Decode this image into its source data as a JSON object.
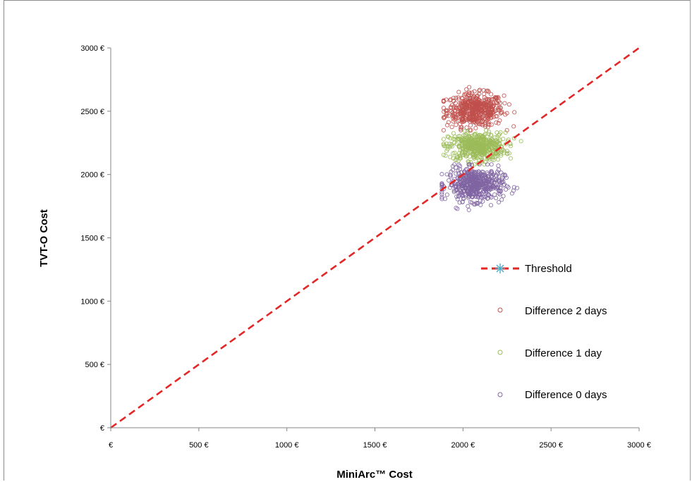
{
  "chart_data": {
    "type": "scatter",
    "title": "",
    "xlabel": "MiniArc™ Cost",
    "ylabel": "TVT-O Cost",
    "xlim": [
      0,
      3000
    ],
    "ylim": [
      0,
      3000
    ],
    "x_ticks": [
      0,
      500,
      1000,
      1500,
      2000,
      2500,
      3000
    ],
    "y_ticks": [
      0,
      500,
      1000,
      1500,
      2000,
      2500,
      3000
    ],
    "x_tick_labels": [
      "€",
      "500 €",
      "1000 €",
      "1500 €",
      "2000 €",
      "2500 €",
      "3000 €"
    ],
    "y_tick_labels": [
      "€",
      "500 €",
      "1000 €",
      "1500 €",
      "2000 €",
      "2500 €",
      "3000 €"
    ],
    "grid": false,
    "legend_position": "right-inside",
    "threshold": {
      "name": "Threshold",
      "x": [
        0,
        3000
      ],
      "y": [
        0,
        3000
      ],
      "color": "#e32626",
      "style": "dashed"
    },
    "series": [
      {
        "name": "Difference 2 days",
        "color": "#c0504d",
        "x_range": [
          1890,
          2300
        ],
        "y_range": [
          2350,
          2690
        ],
        "x_center": 2070,
        "y_center": 2510,
        "x_spread": 80,
        "y_spread": 65,
        "n_points": 500
      },
      {
        "name": "Difference 1 day",
        "color": "#9bbb59",
        "x_range": [
          1890,
          2330
        ],
        "y_range": [
          2080,
          2380
        ],
        "x_center": 2080,
        "y_center": 2220,
        "x_spread": 80,
        "y_spread": 55,
        "n_points": 500
      },
      {
        "name": "Difference 0 days",
        "color": "#8064a2",
        "x_range": [
          1880,
          2320
        ],
        "y_range": [
          1720,
          2080
        ],
        "x_center": 2070,
        "y_center": 1920,
        "x_spread": 80,
        "y_spread": 65,
        "n_points": 500
      }
    ]
  }
}
